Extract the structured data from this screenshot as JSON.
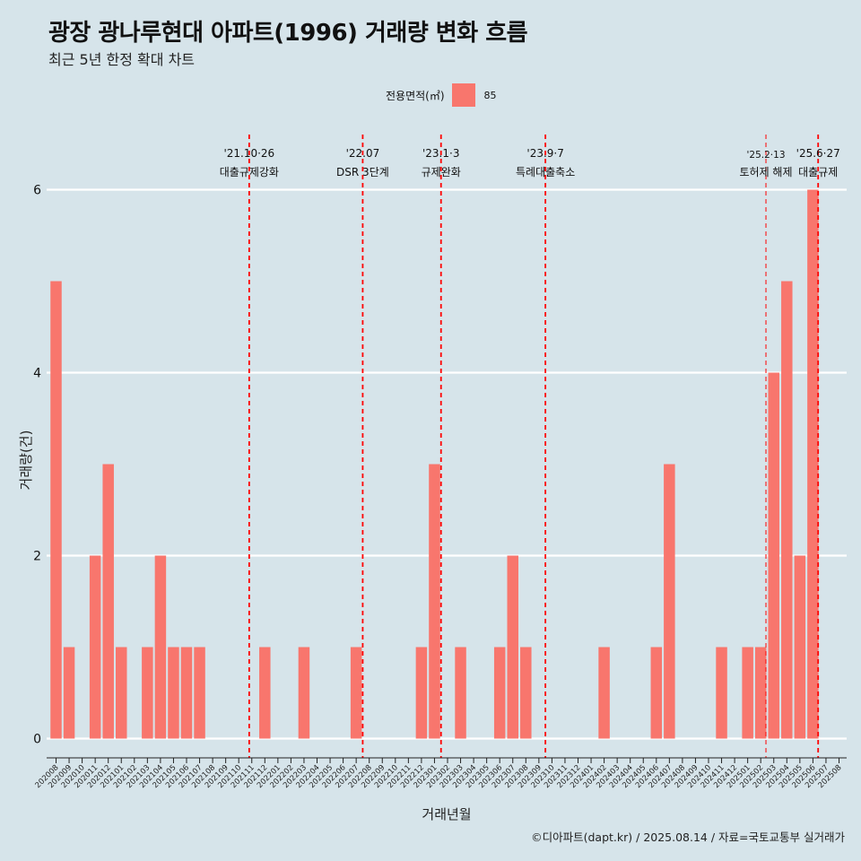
{
  "title": "광장 광나루현대 아파트(1996) 거래량 변화 흐름",
  "subtitle": "최근 5년 한정 확대 차트",
  "legend": {
    "title": "전용면적(㎡)",
    "entry": "85"
  },
  "caption": "©디아파트(dapt.kr) / 2025.08.14 / 자료=국토교통부 실거래가",
  "colors": {
    "background": "#d6e4ea",
    "bar": "#f8766d",
    "event_line": "#ff0000",
    "grid": "#ffffff"
  },
  "chart_data": {
    "type": "bar",
    "xlabel": "거래년월",
    "ylabel": "거래량(건)",
    "ylim": [
      -0.25,
      6.3
    ],
    "yticks": [
      0,
      2,
      4,
      6
    ],
    "grid": true,
    "legend_position": "top",
    "categories": [
      "202008",
      "202009",
      "202010",
      "202011",
      "202012",
      "202101",
      "202102",
      "202103",
      "202104",
      "202105",
      "202106",
      "202107",
      "202108",
      "202109",
      "202110",
      "202111",
      "202112",
      "202201",
      "202202",
      "202203",
      "202204",
      "202205",
      "202206",
      "202207",
      "202208",
      "202209",
      "202210",
      "202211",
      "202212",
      "202301",
      "202302",
      "202303",
      "202304",
      "202305",
      "202306",
      "202307",
      "202308",
      "202309",
      "202310",
      "202311",
      "202312",
      "202401",
      "202402",
      "202403",
      "202404",
      "202405",
      "202406",
      "202407",
      "202408",
      "202409",
      "202410",
      "202411",
      "202412",
      "202501",
      "202502",
      "202503",
      "202504",
      "202505",
      "202506",
      "202507",
      "202508"
    ],
    "series": [
      {
        "name": "85",
        "values": [
          5,
          1,
          0,
          2,
          3,
          1,
          0,
          1,
          2,
          1,
          1,
          1,
          0,
          0,
          0,
          0,
          1,
          0,
          0,
          1,
          0,
          0,
          0,
          1,
          0,
          0,
          0,
          0,
          1,
          3,
          0,
          1,
          0,
          0,
          1,
          2,
          1,
          0,
          0,
          0,
          0,
          0,
          1,
          0,
          0,
          0,
          1,
          3,
          0,
          0,
          0,
          1,
          0,
          1,
          1,
          4,
          5,
          2,
          6,
          0,
          0
        ]
      }
    ],
    "annotations": [
      {
        "date": "2021-10-26",
        "line1": "'21.10·26",
        "line2": "대출규제강화",
        "style": "dashed",
        "x_index": 14.8
      },
      {
        "date": "2022-07",
        "line1": "'22.07",
        "line2": "DSR 3단계",
        "style": "dashed",
        "x_index": 23.5
      },
      {
        "date": "2023-01-03",
        "line1": "'23.1·3",
        "line2": "규제완화",
        "style": "dashed",
        "x_index": 29.5
      },
      {
        "date": "2023-09-07",
        "line1": "'23.9·7",
        "line2": "특례대출축소",
        "style": "dashed",
        "x_index": 37.5
      },
      {
        "date": "2025-02-13",
        "line1": "'25.2·13",
        "line2": "토허제 해제",
        "style": "thin",
        "x_index": 54.4
      },
      {
        "date": "2025-06-27",
        "line1": "'25.6·27",
        "line2": "대출규제",
        "style": "dashed",
        "x_index": 58.4
      }
    ]
  }
}
